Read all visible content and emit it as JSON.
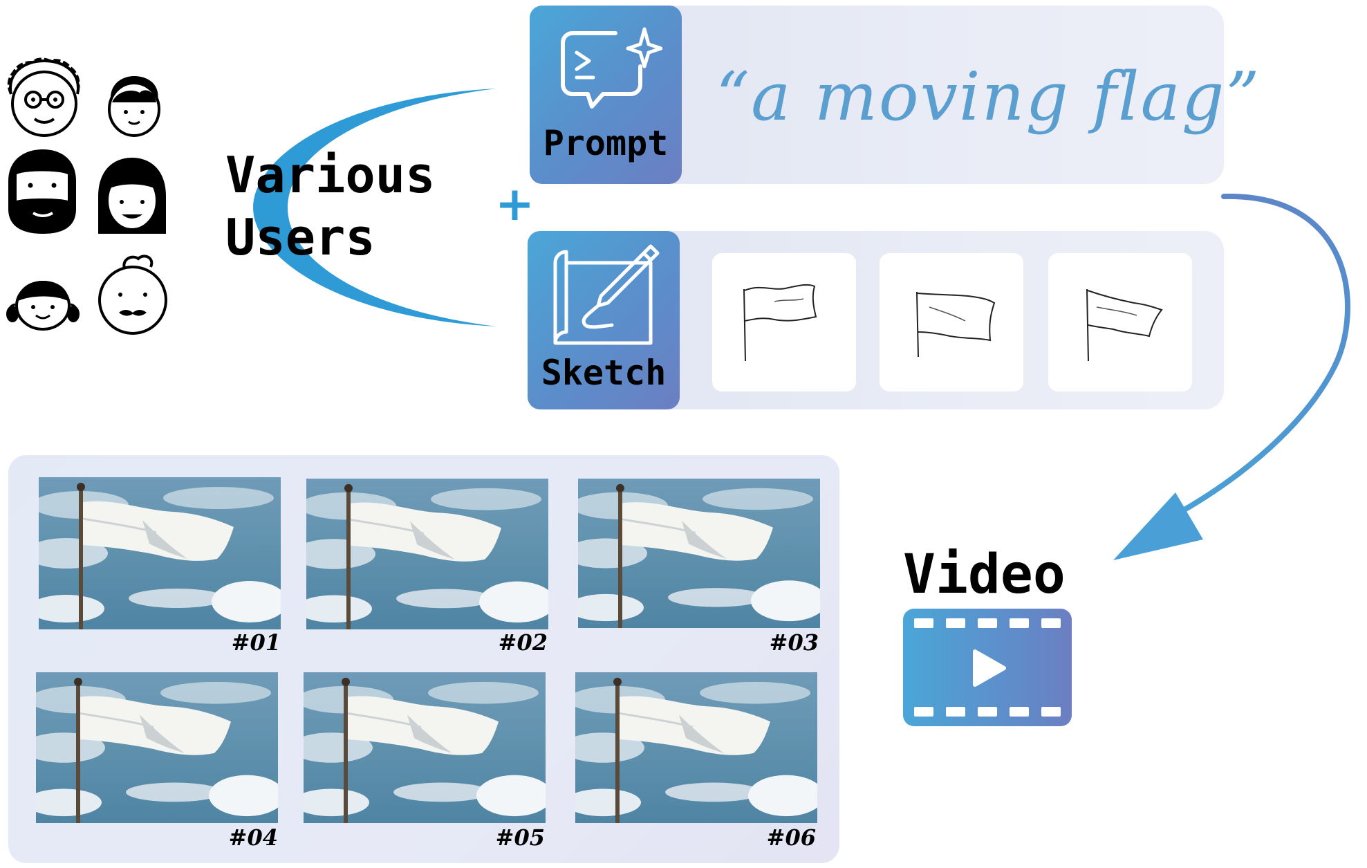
{
  "users": {
    "label_line1": "Various",
    "label_line2": "Users"
  },
  "plus_sign": "+",
  "prompt": {
    "label": "Prompt",
    "text": "“a moving flag”"
  },
  "sketch": {
    "label": "Sketch"
  },
  "video": {
    "label": "Video"
  },
  "frames": [
    {
      "label": "#01"
    },
    {
      "label": "#02"
    },
    {
      "label": "#03"
    },
    {
      "label": "#04"
    },
    {
      "label": "#05"
    },
    {
      "label": "#06"
    }
  ],
  "colors": {
    "accent_blue": "#2e9bd6",
    "tile_gradient_start": "#4aa6d8",
    "tile_gradient_end": "#6b7fc2",
    "panel_background": "#e6eaf5",
    "prompt_text": "#5a9fd0"
  }
}
